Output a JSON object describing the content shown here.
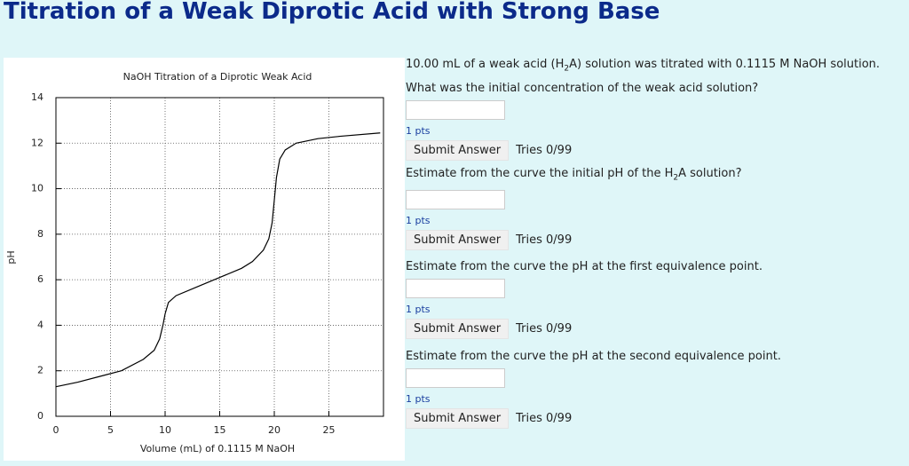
{
  "header": {
    "title": "Titration of a Weak Diprotic Acid with Strong Base"
  },
  "chart_data": {
    "type": "line",
    "title": "NaOH Titration of a Diprotic Weak Acid",
    "x_label": "Volume (mL) of 0.1115 M NaOH",
    "y_label": "pH",
    "x": [
      0,
      2,
      4,
      6,
      8,
      9,
      9.5,
      9.8,
      10,
      10.3,
      11,
      13,
      15,
      17,
      18,
      19,
      19.5,
      19.8,
      20,
      20.2,
      20.5,
      21,
      22,
      24,
      26,
      29.7
    ],
    "values": [
      1.3,
      1.5,
      1.75,
      2.0,
      2.5,
      2.9,
      3.4,
      4.0,
      4.5,
      5.0,
      5.3,
      5.7,
      6.1,
      6.5,
      6.8,
      7.3,
      7.8,
      8.5,
      9.5,
      10.5,
      11.3,
      11.7,
      12.0,
      12.2,
      12.3,
      12.45
    ],
    "color": "#000000",
    "xlim": [
      0,
      30
    ],
    "xticks": [
      0,
      5,
      10,
      15,
      20,
      25
    ],
    "ylim": [
      0,
      14
    ],
    "yticks": [
      0,
      2,
      4,
      6,
      8,
      10,
      12,
      14
    ],
    "grid": true
  },
  "questions": [
    {
      "text": [
        "10.00 mL of a weak acid (H",
        "2",
        "A) solution was titrated with 0.1115 M NaOH solution. What was the initial concentration of the weak acid solution?"
      ],
      "points": "1 pts",
      "button": "Submit Answer",
      "tries": "Tries 0/99"
    },
    {
      "text": [
        "Estimate from the curve the initial pH of the H",
        "2",
        "A solution?"
      ],
      "points": "1 pts",
      "button": "Submit Answer",
      "tries": "Tries 0/99"
    },
    {
      "text": [
        "Estimate from the curve the pH at the first equivalence point."
      ],
      "points": "1 pts",
      "button": "Submit Answer",
      "tries": "Tries 0/99"
    },
    {
      "text": [
        "Estimate from the curve the pH at the second equivalence point."
      ],
      "points": "1 pts",
      "button": "Submit Answer",
      "tries": "Tries 0/99"
    }
  ]
}
